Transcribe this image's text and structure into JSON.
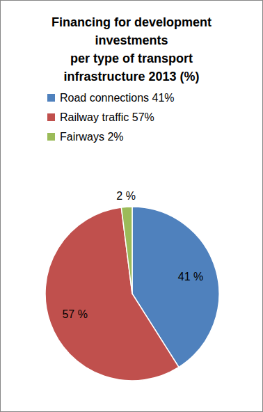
{
  "chart_data": {
    "type": "pie",
    "title": "Financing for development\ninvestments\nper type of transport\ninfrastructure 2013 (%)",
    "categories": [
      "Road connections 41%",
      "Railway traffic 57%",
      "Fairways 2%"
    ],
    "values": [
      41,
      57,
      2
    ],
    "value_labels": [
      "41 %",
      "57 %",
      "2 %"
    ],
    "colors": [
      "#4f81bd",
      "#c0504d",
      "#9bbb59"
    ],
    "data_labels": true,
    "legend": "top"
  }
}
